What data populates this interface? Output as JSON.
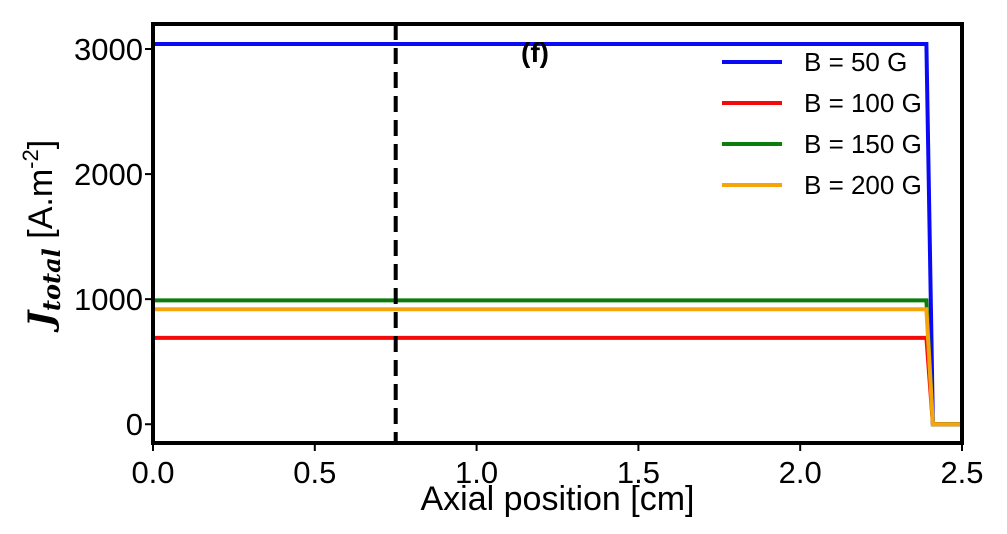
{
  "chart_data": {
    "type": "line",
    "panel_label": "(f)",
    "xlabel": "Axial position [cm]",
    "ylabel": {
      "symbol": "J",
      "subscript": "total",
      "unit_prefix": " [A.m",
      "unit_exp": "-2",
      "unit_suffix": "]"
    },
    "xlim": [
      0.0,
      2.5
    ],
    "ylim": [
      -150,
      3200
    ],
    "xticks": [
      0.0,
      0.5,
      1.0,
      1.5,
      2.0,
      2.5
    ],
    "xtick_labels": [
      "0.0",
      "0.5",
      "1.0",
      "1.5",
      "2.0",
      "2.5"
    ],
    "yticks": [
      0,
      1000,
      2000,
      3000
    ],
    "ytick_labels": [
      "0",
      "1000",
      "2000",
      "3000"
    ],
    "grid": false,
    "legend_position": "top-right",
    "vertical_line": {
      "x": 0.75,
      "style": "dashed",
      "color": "#000000"
    },
    "series": [
      {
        "name": "B = 50 G",
        "color": "#0a0af5",
        "x": [
          0.0,
          2.39,
          2.41,
          2.5
        ],
        "y": [
          3040,
          3040,
          0,
          0
        ]
      },
      {
        "name": "B = 100 G",
        "color": "#f50a0a",
        "x": [
          0.0,
          2.39,
          2.41,
          2.5
        ],
        "y": [
          690,
          690,
          0,
          0
        ]
      },
      {
        "name": "B = 150 G",
        "color": "#0a7d0a",
        "x": [
          0.0,
          2.39,
          2.41,
          2.5
        ],
        "y": [
          990,
          990,
          0,
          0
        ]
      },
      {
        "name": "B = 200 G",
        "color": "#f5a50a",
        "x": [
          0.0,
          2.39,
          2.41,
          2.5
        ],
        "y": [
          920,
          920,
          0,
          0
        ]
      }
    ]
  }
}
